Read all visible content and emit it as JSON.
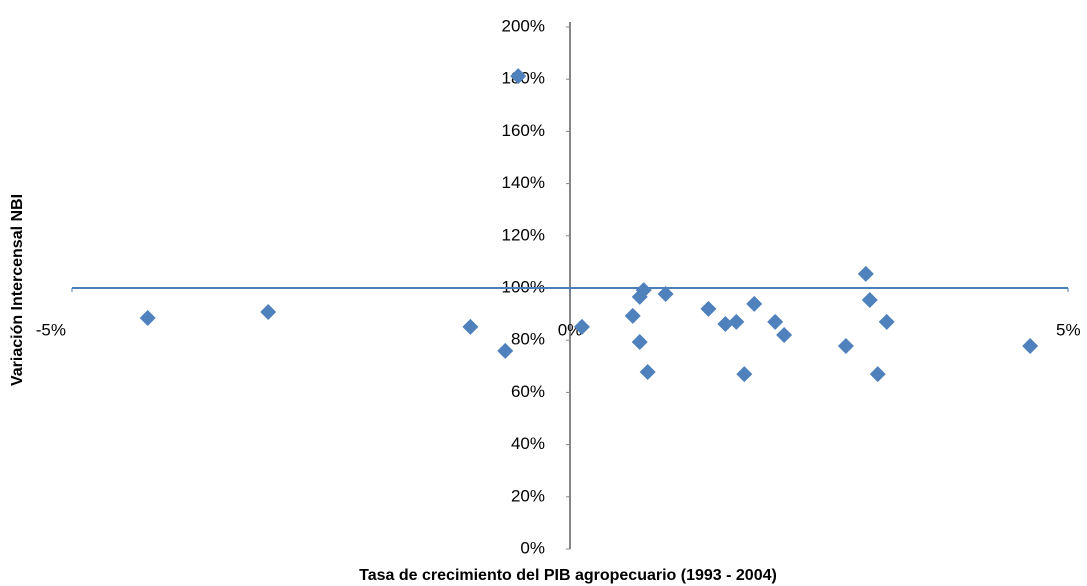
{
  "chart_data": {
    "type": "scatter",
    "xlabel": "Tasa de crecimiento del PIB agropecuario (1993 - 2004)",
    "ylabel": "Variación Intercensal NBI",
    "xlim": [
      -5,
      5
    ],
    "xticks": [
      {
        "value": -5,
        "label": "-5%"
      },
      {
        "value": 0,
        "label": "0%"
      },
      {
        "value": 5,
        "label": "5%"
      }
    ],
    "ylim": [
      0,
      200
    ],
    "yticks": [
      {
        "value": 0,
        "label": "0%"
      },
      {
        "value": 20,
        "label": "20%"
      },
      {
        "value": 40,
        "label": "40%"
      },
      {
        "value": 60,
        "label": "60%"
      },
      {
        "value": 80,
        "label": "80%"
      },
      {
        "value": 100,
        "label": "100%"
      },
      {
        "value": 120,
        "label": "120%"
      },
      {
        "value": 140,
        "label": "140%"
      },
      {
        "value": 160,
        "label": "160%"
      },
      {
        "value": 180,
        "label": "180%"
      },
      {
        "value": 200,
        "label": "200%"
      }
    ],
    "x_axis_crosses_y": 100,
    "y_axis_crosses_x": 0,
    "grid": false,
    "color": "#4f81bd",
    "x": [
      -4.24,
      -3.03,
      -1.0,
      -0.65,
      -0.52,
      0.12,
      0.63,
      0.7,
      0.74,
      0.7,
      0.78,
      0.96,
      1.39,
      1.56,
      1.67,
      1.75,
      1.85,
      2.06,
      2.15,
      2.77,
      2.97,
      3.01,
      3.09,
      3.18,
      4.62
    ],
    "y": [
      88.5,
      90.8,
      85.1,
      75.9,
      181.2,
      85.1,
      89.3,
      96.6,
      99.2,
      79.3,
      67.8,
      97.7,
      92.0,
      86.2,
      87.0,
      67.0,
      93.9,
      87.0,
      82.0,
      77.8,
      105.4,
      95.4,
      67.0,
      87.0,
      77.8
    ]
  }
}
